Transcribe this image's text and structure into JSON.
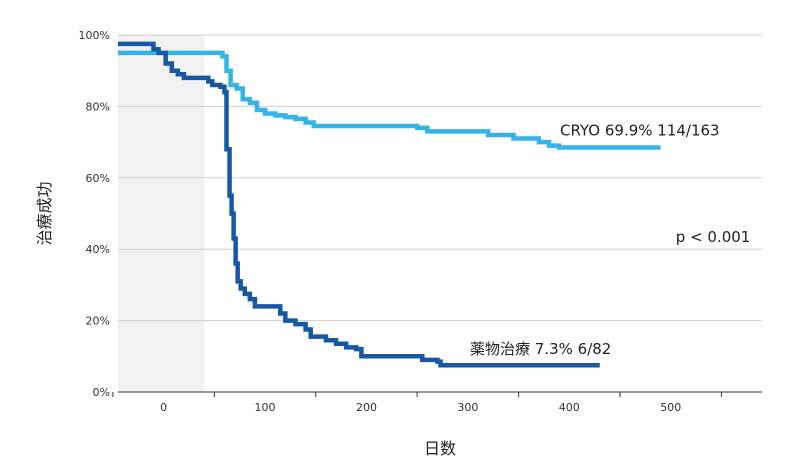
{
  "chart_data": {
    "type": "line",
    "title": "",
    "xlabel": "日数",
    "ylabel": "治療成功",
    "xlim": [
      -45,
      590
    ],
    "ylim": [
      0,
      100
    ],
    "x_ticks": [
      0,
      100,
      200,
      300,
      400,
      500
    ],
    "y_ticks": [
      0,
      20,
      40,
      60,
      80,
      100
    ],
    "y_tick_labels": [
      "0%",
      "20%",
      "40%",
      "60%",
      "80%",
      "100%"
    ],
    "shaded_region": [
      -45,
      40
    ],
    "grid": "horizontal",
    "series": [
      {
        "name": "CRYO",
        "label": "CRYO 69.9% 114/163",
        "color": "#33b4e6",
        "points": [
          [
            -45,
            95
          ],
          [
            10,
            95
          ],
          [
            40,
            95
          ],
          [
            58,
            94
          ],
          [
            62,
            90
          ],
          [
            66,
            86
          ],
          [
            72,
            85
          ],
          [
            78,
            82
          ],
          [
            85,
            81
          ],
          [
            92,
            79
          ],
          [
            100,
            78
          ],
          [
            110,
            77.5
          ],
          [
            120,
            77
          ],
          [
            130,
            76.5
          ],
          [
            140,
            75.5
          ],
          [
            148,
            74.5
          ],
          [
            160,
            74.5
          ],
          [
            240,
            74.5
          ],
          [
            250,
            74
          ],
          [
            260,
            73
          ],
          [
            300,
            73
          ],
          [
            320,
            72
          ],
          [
            345,
            71
          ],
          [
            370,
            70
          ],
          [
            380,
            69
          ],
          [
            390,
            68.5
          ],
          [
            490,
            68.5
          ]
        ]
      },
      {
        "name": "薬物治療",
        "label": "薬物治療 7.3% 6/82",
        "color": "#1758a6",
        "points": [
          [
            -45,
            97.5
          ],
          [
            -15,
            97.5
          ],
          [
            -10,
            96
          ],
          [
            -5,
            95
          ],
          [
            2,
            92
          ],
          [
            8,
            90
          ],
          [
            14,
            89
          ],
          [
            20,
            88
          ],
          [
            44,
            87
          ],
          [
            48,
            86
          ],
          [
            56,
            85.5
          ],
          [
            60,
            84
          ],
          [
            62,
            68
          ],
          [
            65,
            55
          ],
          [
            67,
            50
          ],
          [
            69,
            43
          ],
          [
            71,
            36
          ],
          [
            73,
            31
          ],
          [
            76,
            29
          ],
          [
            80,
            27.5
          ],
          [
            85,
            26
          ],
          [
            90,
            24
          ],
          [
            110,
            24
          ],
          [
            115,
            22
          ],
          [
            120,
            20
          ],
          [
            130,
            19
          ],
          [
            140,
            17.5
          ],
          [
            145,
            15.5
          ],
          [
            160,
            14.5
          ],
          [
            170,
            13.5
          ],
          [
            180,
            12.5
          ],
          [
            190,
            12
          ],
          [
            195,
            10
          ],
          [
            250,
            10
          ],
          [
            255,
            9
          ],
          [
            270,
            8.5
          ],
          [
            273,
            7.5
          ],
          [
            430,
            7.5
          ]
        ]
      }
    ],
    "annotations": [
      {
        "text": "p < 0.001",
        "x": 505,
        "y": 42
      }
    ]
  }
}
